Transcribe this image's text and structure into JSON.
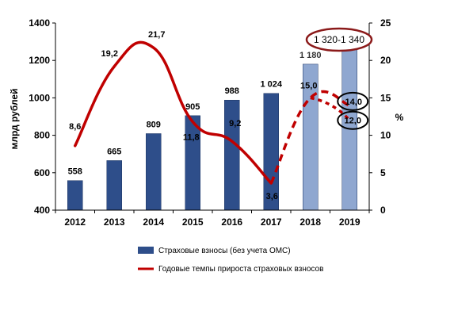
{
  "chart_data": {
    "type": "bar",
    "categories": [
      "2012",
      "2013",
      "2014",
      "2015",
      "2016",
      "2017",
      "2018",
      "2019"
    ],
    "series": [
      {
        "name": "Страховые взносы (без учета ОМС)",
        "type": "bar",
        "axis": "left",
        "values": [
          558,
          665,
          809,
          905,
          988,
          1024,
          1180,
          1330
        ],
        "labels": [
          "558",
          "665",
          "809",
          "905",
          "988",
          "1 024",
          "1 180",
          ""
        ],
        "colors": [
          "#2E4E8A",
          "#2E4E8A",
          "#2E4E8A",
          "#2E4E8A",
          "#2E4E8A",
          "#2E4E8A",
          "#8FA7D0",
          "#8FA7D0"
        ]
      },
      {
        "name": "Годовые темпы прироста страховых взносов",
        "type": "line",
        "axis": "right",
        "color": "#C00000",
        "values": [
          8.6,
          19.2,
          21.7,
          11.8,
          9.2,
          3.6,
          15.0,
          14.0
        ],
        "labels": [
          "8,6",
          "19,2",
          "21,7",
          "11,8",
          "9,2",
          "3,6",
          "15,0",
          "14,0"
        ],
        "forecast_from_index": 5,
        "alt_2019": {
          "value": 12.0,
          "label": "12,0"
        }
      }
    ],
    "annotation": "1 320-1 340",
    "ylabel": "млрд рублей",
    "y2label": "%",
    "ylim": [
      400,
      1400
    ],
    "y2lim": [
      0,
      25
    ],
    "yticks": [
      "400",
      "600",
      "800",
      "1000",
      "1200",
      "1400"
    ],
    "y2ticks": [
      "0",
      "5",
      "10",
      "15",
      "20",
      "25"
    ],
    "legend_position": "bottom",
    "grid": false
  }
}
